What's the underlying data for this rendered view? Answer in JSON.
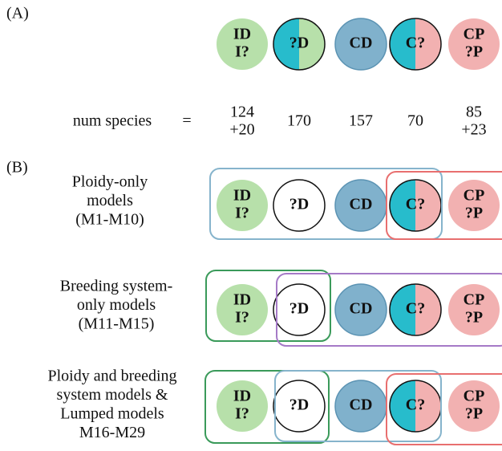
{
  "panel_a": {
    "label": "(A)",
    "row_label": "num species",
    "equals": "=",
    "counts": [
      [
        "124",
        "+20"
      ],
      [
        "170"
      ],
      [
        "157"
      ],
      [
        "70"
      ],
      [
        "85",
        "+23"
      ]
    ]
  },
  "circles": [
    {
      "lines": [
        "ID",
        "I?"
      ]
    },
    {
      "lines": [
        "?D"
      ]
    },
    {
      "lines": [
        "CD"
      ]
    },
    {
      "lines": [
        "C?"
      ]
    },
    {
      "lines": [
        "CP",
        "?P"
      ]
    }
  ],
  "panel_b": {
    "label": "(B)",
    "rows": [
      {
        "lines": [
          "Ploidy-only",
          "models",
          "(M1-M10)"
        ]
      },
      {
        "lines": [
          "Breeding system-",
          "only models",
          "(M11-M15)"
        ]
      },
      {
        "lines": [
          "Ploidy and breeding",
          "system models &",
          "Lumped models",
          "M16-M29"
        ]
      }
    ]
  }
}
